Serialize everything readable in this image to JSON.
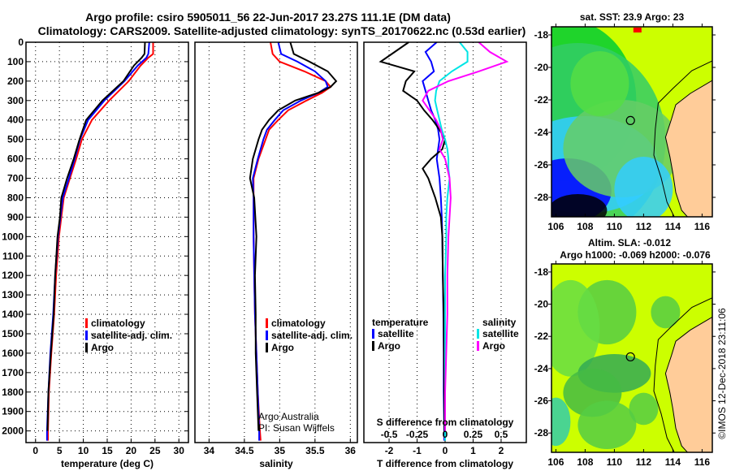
{
  "header": {
    "title_line1": "Argo profile: csiro 5905011_56 22-Jun-2017 23.27S 111.1E (DM data)",
    "title_line2": "Climatology: CARS2009. Satellite-adjusted climatology: synTS_20170622.nc (0.53d earlier)"
  },
  "colors": {
    "climatology": "#ff0000",
    "satellite": "#0000ff",
    "argo": "#000000",
    "sal_satellite": "#00e5e5",
    "sal_argo": "#ff00ff",
    "land": "#ffcc99"
  },
  "credit": {
    "line1": "Argo Australia",
    "line2": "PI: Susan Wijffels"
  },
  "watermark": "©IMOS 12-Dec-2018 23:11:06",
  "chart_data": [
    {
      "type": "line",
      "id": "temperature",
      "xlabel": "temperature (deg C)",
      "ylabel": "",
      "xlim": [
        -2,
        32
      ],
      "ylim": [
        2060,
        0
      ],
      "xticks": [
        0,
        5,
        10,
        15,
        20,
        25,
        30
      ],
      "yticks": [
        0,
        100,
        200,
        300,
        400,
        500,
        600,
        700,
        800,
        900,
        1000,
        1100,
        1200,
        1300,
        1400,
        1500,
        1600,
        1700,
        1800,
        1900,
        2000
      ],
      "grid": true,
      "legend": [
        "climatology",
        "satellite-adj. clim.",
        "Argo"
      ],
      "legend_placement": "lower-right",
      "depth": [
        0,
        60,
        80,
        120,
        200,
        300,
        400,
        500,
        600,
        700,
        800,
        900,
        1000,
        1200,
        1400,
        1600,
        1800,
        2000,
        2050
      ],
      "series": [
        {
          "name": "climatology",
          "values": [
            24.6,
            24.6,
            23.6,
            22.0,
            19.5,
            15.4,
            11.8,
            9.7,
            8.5,
            7.2,
            5.9,
            5.4,
            4.9,
            4.3,
            3.9,
            3.3,
            2.8,
            2.6,
            2.6
          ]
        },
        {
          "name": "satellite-adj. clim.",
          "values": [
            23.8,
            23.6,
            23.2,
            21.4,
            18.6,
            14.4,
            11.0,
            9.3,
            8.2,
            7.0,
            5.7,
            5.2,
            4.7,
            4.1,
            3.7,
            3.1,
            2.7,
            2.4,
            2.4
          ]
        },
        {
          "name": "Argo",
          "values": [
            22.9,
            22.8,
            22.2,
            20.6,
            18.4,
            14.0,
            10.6,
            9.2,
            8.0,
            6.6,
            5.4,
            5.1,
            4.6,
            4.1,
            3.8,
            3.2,
            2.7,
            2.5,
            null
          ]
        }
      ]
    },
    {
      "type": "line",
      "id": "salinity",
      "xlabel": "salinity",
      "xlim": [
        33.8,
        36.1
      ],
      "ylim": [
        2060,
        0
      ],
      "xticks": [
        34,
        34.5,
        35,
        35.5,
        36
      ],
      "grid": true,
      "legend": [
        "climatology",
        "satellite-adj. clim.",
        "Argo"
      ],
      "legend_placement": "lower-right",
      "depth": [
        0,
        60,
        100,
        150,
        200,
        230,
        260,
        300,
        350,
        400,
        450,
        500,
        600,
        700,
        800,
        1000,
        1200,
        1400,
        1600,
        1800,
        2000,
        2050
      ],
      "series": [
        {
          "name": "climatology",
          "values": [
            34.87,
            34.9,
            35.0,
            35.35,
            35.65,
            35.72,
            35.6,
            35.38,
            35.12,
            34.98,
            34.85,
            34.8,
            34.7,
            34.63,
            34.63,
            34.63,
            34.64,
            34.65,
            34.67,
            34.69,
            34.72,
            34.73
          ]
        },
        {
          "name": "satellite-adj. clim.",
          "values": [
            34.98,
            35.02,
            35.25,
            35.5,
            35.65,
            35.68,
            35.55,
            35.3,
            35.05,
            34.93,
            34.82,
            34.77,
            34.69,
            34.62,
            34.63,
            34.63,
            34.64,
            34.65,
            34.67,
            34.69,
            34.71,
            34.71
          ]
        },
        {
          "name": "Argo",
          "values": [
            35.15,
            35.2,
            35.42,
            35.68,
            35.8,
            35.72,
            35.55,
            35.22,
            34.98,
            34.85,
            34.75,
            34.7,
            34.62,
            34.58,
            34.64,
            34.67,
            34.65,
            34.66,
            34.66,
            34.68,
            34.7,
            null
          ]
        }
      ]
    },
    {
      "type": "line",
      "id": "difference",
      "xlabel": "T difference from climatology",
      "x2label": "S difference from climatology",
      "xlim": [
        -2.9,
        2.9
      ],
      "x2lim": [
        -0.725,
        0.725
      ],
      "ylim": [
        2060,
        0
      ],
      "xticks": [
        -2,
        -1,
        0,
        1,
        2
      ],
      "x2ticks": [
        -0.5,
        -0.25,
        0,
        0.25,
        0.5
      ],
      "grid": true,
      "legend": {
        "temperature": [
          "satellite",
          "Argo"
        ],
        "salinity": [
          "satellite",
          "Argo"
        ]
      },
      "legend_placement": "lower",
      "depth": [
        0,
        50,
        100,
        150,
        200,
        250,
        300,
        350,
        400,
        450,
        500,
        550,
        600,
        650,
        700,
        800,
        900,
        1000,
        1200,
        1400,
        1600,
        1800,
        2000,
        2050
      ],
      "series": [
        {
          "name": "temperature satellite",
          "axis": "T",
          "values": [
            -0.3,
            -0.7,
            -0.5,
            -0.4,
            -0.8,
            -0.7,
            -0.6,
            -0.5,
            -0.35,
            -0.25,
            -0.2,
            -0.25,
            -0.3,
            -0.25,
            -0.2,
            -0.15,
            -0.12,
            -0.1,
            -0.08,
            -0.06,
            -0.05,
            -0.05,
            -0.03,
            -0.03
          ]
        },
        {
          "name": "temperature Argo",
          "axis": "T",
          "values": [
            -1.3,
            -1.8,
            -2.3,
            -1.1,
            -1.4,
            -1.5,
            -1.0,
            -0.75,
            -0.45,
            -0.2,
            0.0,
            -0.1,
            -0.5,
            -0.8,
            -0.6,
            -0.35,
            -0.15,
            -0.1,
            -0.08,
            -0.05,
            -0.04,
            -0.03,
            -0.02,
            null
          ]
        },
        {
          "name": "salinity satellite",
          "axis": "S",
          "values": [
            0.13,
            0.2,
            0.2,
            0.06,
            -0.05,
            -0.08,
            -0.09,
            -0.07,
            -0.05,
            -0.03,
            0.0,
            0.02,
            0.03,
            0.03,
            0.04,
            0.02,
            0.01,
            0.01,
            0.0,
            0.0,
            0.0,
            0.0,
            0.0,
            0.0
          ]
        },
        {
          "name": "salinity Argo",
          "axis": "S",
          "values": [
            0.3,
            0.4,
            0.55,
            0.3,
            0.03,
            -0.15,
            -0.2,
            -0.14,
            -0.08,
            -0.04,
            -0.02,
            -0.05,
            0.0,
            0.02,
            0.04,
            0.05,
            0.04,
            0.03,
            0.02,
            0.02,
            0.01,
            0.0,
            0.0,
            null
          ]
        }
      ]
    },
    {
      "type": "heatmap",
      "id": "sst-map",
      "title": "sat. SST: 23.9 Argo: 23",
      "xlim": [
        105.7,
        116.7
      ],
      "ylim": [
        -29.2,
        -17.5
      ],
      "xticks": [
        106,
        108,
        110,
        112,
        114,
        116
      ],
      "yticks": [
        -18,
        -20,
        -22,
        -24,
        -26,
        -28
      ],
      "float_position": {
        "lon": 111.1,
        "lat": -23.27
      }
    },
    {
      "type": "heatmap",
      "id": "sla-map",
      "title": "Altim. SLA: -0.012",
      "subtitle": "Argo h1000: -0.069 h2000: -0.076",
      "xlim": [
        105.7,
        116.7
      ],
      "ylim": [
        -29.2,
        -17.5
      ],
      "xticks": [
        106,
        108,
        110,
        112,
        114,
        116
      ],
      "yticks": [
        -18,
        -20,
        -22,
        -24,
        -26,
        -28
      ],
      "float_position": {
        "lon": 111.1,
        "lat": -23.27
      }
    }
  ]
}
